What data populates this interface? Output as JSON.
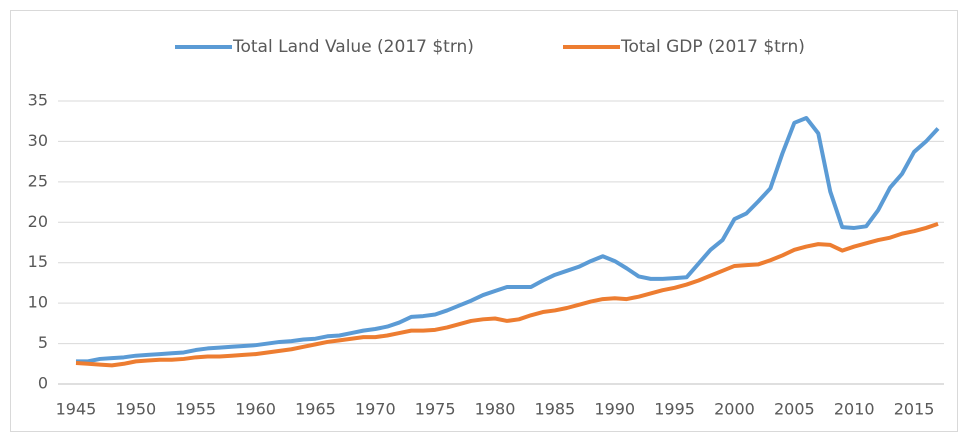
{
  "chart_data": {
    "type": "line",
    "x": [
      1945,
      1946,
      1947,
      1948,
      1949,
      1950,
      1951,
      1952,
      1953,
      1954,
      1955,
      1956,
      1957,
      1958,
      1959,
      1960,
      1961,
      1962,
      1963,
      1964,
      1965,
      1966,
      1967,
      1968,
      1969,
      1970,
      1971,
      1972,
      1973,
      1974,
      1975,
      1976,
      1977,
      1978,
      1979,
      1980,
      1981,
      1982,
      1983,
      1984,
      1985,
      1986,
      1987,
      1988,
      1989,
      1990,
      1991,
      1992,
      1993,
      1994,
      1995,
      1996,
      1997,
      1998,
      1999,
      2000,
      2001,
      2002,
      2003,
      2004,
      2005,
      2006,
      2007,
      2008,
      2009,
      2010,
      2011,
      2012,
      2013,
      2014,
      2015,
      2016,
      2017
    ],
    "series": [
      {
        "name": "Total Land Value (2017 $trn)",
        "color": "#5b9bd5",
        "values": [
          2.8,
          2.8,
          3.1,
          3.2,
          3.3,
          3.5,
          3.6,
          3.7,
          3.8,
          3.9,
          4.2,
          4.4,
          4.5,
          4.6,
          4.7,
          4.8,
          5.0,
          5.2,
          5.3,
          5.5,
          5.6,
          5.9,
          6.0,
          6.3,
          6.6,
          6.8,
          7.1,
          7.6,
          8.3,
          8.4,
          8.6,
          9.1,
          9.7,
          10.3,
          11.0,
          11.5,
          12.0,
          12.0,
          12.0,
          12.8,
          13.5,
          14.0,
          14.5,
          15.2,
          15.8,
          15.2,
          14.3,
          13.3,
          13.0,
          13.0,
          13.1,
          13.2,
          14.9,
          16.6,
          17.8,
          20.4,
          21.1,
          22.6,
          24.2,
          28.5,
          32.3,
          32.9,
          31.0,
          23.8,
          19.4,
          19.3,
          19.5,
          21.5,
          24.3,
          26.0,
          28.7,
          30.0,
          31.6
        ]
      },
      {
        "name": "Total GDP (2017 $trn)",
        "color": "#ed7d31",
        "values": [
          2.6,
          2.5,
          2.4,
          2.3,
          2.5,
          2.8,
          2.9,
          3.0,
          3.0,
          3.1,
          3.3,
          3.4,
          3.4,
          3.5,
          3.6,
          3.7,
          3.9,
          4.1,
          4.3,
          4.6,
          4.9,
          5.2,
          5.4,
          5.6,
          5.8,
          5.8,
          6.0,
          6.3,
          6.6,
          6.6,
          6.7,
          7.0,
          7.4,
          7.8,
          8.0,
          8.1,
          7.8,
          8.0,
          8.5,
          8.9,
          9.1,
          9.4,
          9.8,
          10.2,
          10.5,
          10.6,
          10.5,
          10.8,
          11.2,
          11.6,
          11.9,
          12.3,
          12.8,
          13.4,
          14.0,
          14.6,
          14.7,
          14.8,
          15.3,
          15.9,
          16.6,
          17.0,
          17.3,
          17.2,
          16.5,
          17.0,
          17.4,
          17.8,
          18.1,
          18.6,
          18.9,
          19.3,
          19.8
        ]
      }
    ],
    "xlim": [
      1944.5,
      2017.5
    ],
    "xticks": [
      1945,
      1950,
      1955,
      1960,
      1965,
      1970,
      1975,
      1980,
      1985,
      1990,
      1995,
      2000,
      2005,
      2010,
      2015
    ],
    "ylim": [
      0,
      35
    ],
    "yticks": [
      0,
      5,
      10,
      15,
      20,
      25,
      30,
      35
    ],
    "grid": true,
    "legend": "top"
  }
}
